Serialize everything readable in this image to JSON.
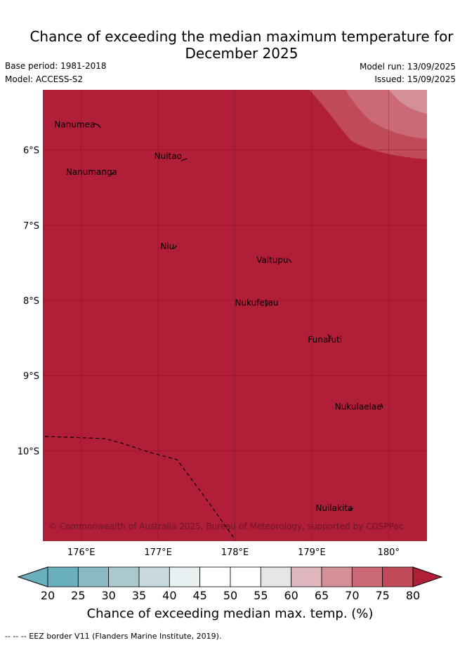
{
  "title_line1": "Chance of exceeding the median maximum temperature for",
  "title_line2": "December 2025",
  "base_period": "Base period: 1981-2018",
  "model": "Model: ACCESS-S2",
  "model_run": "Model run: 13/09/2025",
  "issued": "Issued: 15/09/2025",
  "map": {
    "lon_range": [
      175.5,
      180.5
    ],
    "lat_range": [
      -11.2,
      -5.2
    ],
    "background_color": "#b01e38",
    "lon_ticks": [
      "176°E",
      "177°E",
      "178°E",
      "179°E",
      "180°"
    ],
    "lat_ticks": [
      "6°S",
      "7°S",
      "8°S",
      "9°S",
      "10°S"
    ],
    "places": [
      {
        "name": "Nanumea",
        "lon": 175.65,
        "lat": -5.7
      },
      {
        "name": "Nuitao",
        "lon": 176.95,
        "lat": -6.12
      },
      {
        "name": "Nanumanga",
        "lon": 175.8,
        "lat": -6.33
      },
      {
        "name": "Niu",
        "lon": 177.03,
        "lat": -7.32
      },
      {
        "name": "Vaitupu",
        "lon": 178.28,
        "lat": -7.5
      },
      {
        "name": "Nukufetau",
        "lon": 178.0,
        "lat": -8.07
      },
      {
        "name": "Funafuti",
        "lon": 178.95,
        "lat": -8.56
      },
      {
        "name": "Nukulaelae",
        "lon": 179.3,
        "lat": -9.45
      },
      {
        "name": "Nuilakita",
        "lon": 179.05,
        "lat": -10.8
      }
    ],
    "credit": "© Commonwealth of Australia 2025, Bureau of Meteorology, supported by COSPPac"
  },
  "colorbar": {
    "ticks": [
      "20",
      "25",
      "30",
      "35",
      "40",
      "45",
      "50",
      "55",
      "60",
      "65",
      "70",
      "75",
      "80"
    ],
    "colors": [
      "#6aafbd",
      "#8bbac6",
      "#aac9cf",
      "#c9dadf",
      "#e8f0f2",
      "#ffffff",
      "#ffffff",
      "#e6e6e8",
      "#e0b7bf",
      "#d58f99",
      "#cb6a76",
      "#c04a58",
      "#b01e38"
    ],
    "label": "Chance of exceeding median max. temp. (%)"
  },
  "footnote": "--  --  -- EEZ border V11 (Flanders Marine Institute, 2019)."
}
